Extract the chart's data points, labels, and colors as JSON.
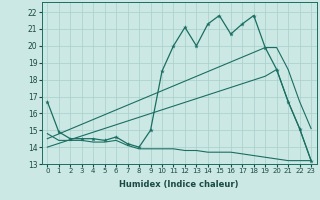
{
  "xlabel": "Humidex (Indice chaleur)",
  "bg_color": "#cce8e4",
  "grid_color": "#a8d0cc",
  "line_color": "#1a6e62",
  "xlim": [
    -0.5,
    23.5
  ],
  "ylim": [
    13,
    22.6
  ],
  "yticks": [
    13,
    14,
    15,
    16,
    17,
    18,
    19,
    20,
    21,
    22
  ],
  "xticks": [
    0,
    1,
    2,
    3,
    4,
    5,
    6,
    7,
    8,
    9,
    10,
    11,
    12,
    13,
    14,
    15,
    16,
    17,
    18,
    19,
    20,
    21,
    22,
    23
  ],
  "main_x": [
    0,
    1,
    2,
    3,
    4,
    5,
    6,
    7,
    8,
    9,
    10,
    11,
    12,
    13,
    14,
    15,
    16,
    17,
    18,
    19,
    20,
    21,
    22,
    23
  ],
  "main_y": [
    16.7,
    14.9,
    14.5,
    14.5,
    14.5,
    14.4,
    14.6,
    14.2,
    14.0,
    15.0,
    18.5,
    20.0,
    21.1,
    20.0,
    21.3,
    21.8,
    20.7,
    21.3,
    21.8,
    19.9,
    18.6,
    16.7,
    15.1,
    13.2
  ],
  "diag1_x": [
    0,
    19,
    20,
    21,
    22,
    23
  ],
  "diag1_y": [
    14.5,
    19.9,
    19.9,
    18.6,
    16.7,
    15.1
  ],
  "diag2_x": [
    0,
    19,
    20,
    21,
    22,
    23
  ],
  "diag2_y": [
    14.0,
    18.2,
    18.6,
    16.7,
    15.1,
    13.2
  ],
  "flat_x": [
    0,
    1,
    2,
    3,
    4,
    5,
    6,
    7,
    8,
    9,
    10,
    11,
    12,
    13,
    14,
    15,
    16,
    17,
    18,
    19,
    20,
    21,
    22,
    23
  ],
  "flat_y": [
    14.8,
    14.4,
    14.4,
    14.4,
    14.3,
    14.3,
    14.4,
    14.1,
    13.9,
    13.9,
    13.9,
    13.9,
    13.8,
    13.8,
    13.7,
    13.7,
    13.7,
    13.6,
    13.5,
    13.4,
    13.3,
    13.2,
    13.2,
    13.2
  ]
}
